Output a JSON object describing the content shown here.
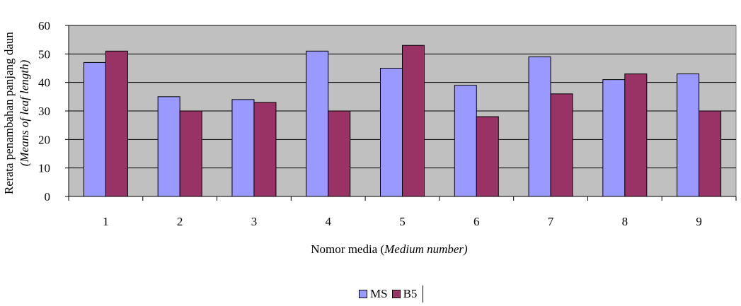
{
  "chart_data": {
    "type": "bar",
    "categories": [
      "1",
      "2",
      "3",
      "4",
      "5",
      "6",
      "7",
      "8",
      "9"
    ],
    "series": [
      {
        "name": "MS",
        "values": [
          47,
          35,
          34,
          51,
          45,
          39,
          49,
          41,
          43
        ],
        "color": "#9999ff"
      },
      {
        "name": "B5",
        "values": [
          51,
          30,
          33,
          30,
          53,
          28,
          36,
          43,
          30
        ],
        "color": "#993366"
      }
    ],
    "ylabel_line1": "Rerata penambahan panjang daun",
    "ylabel_line2": "(Means of leaf length)",
    "xlabel_main": "Nomor media (",
    "xlabel_italic": "Medium number)",
    "ylim": [
      0,
      60
    ],
    "yticks": [
      "0",
      "10",
      "20",
      "30",
      "40",
      "50",
      "60"
    ],
    "grid": true,
    "plot_background": "#c0c0c0",
    "legend_position": "bottom-center"
  }
}
